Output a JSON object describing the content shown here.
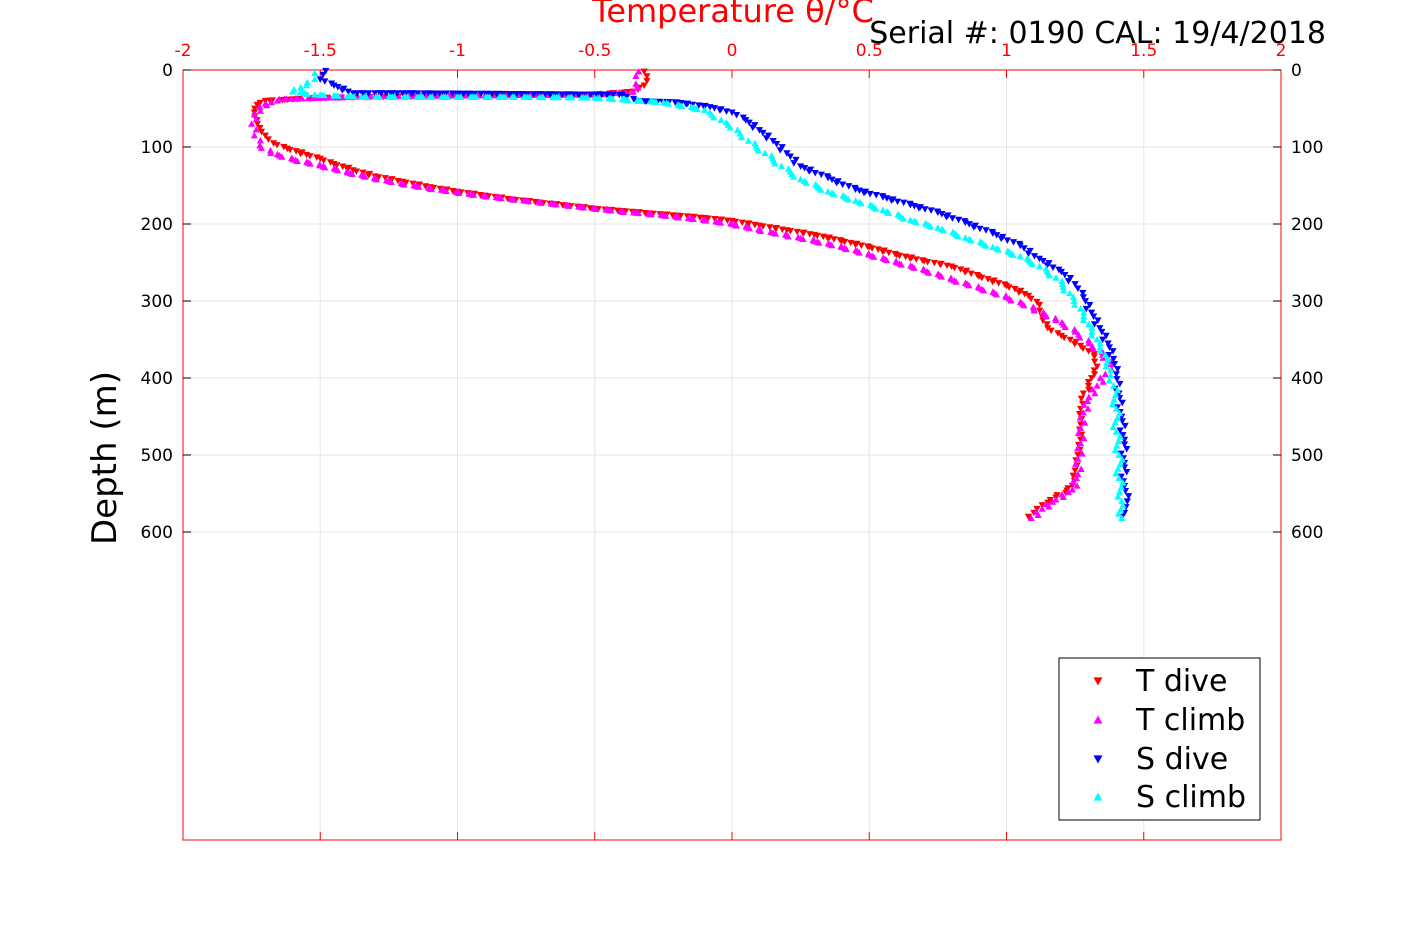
{
  "chart_data": {
    "type": "scatter",
    "title": "Temperature θ/°C",
    "annotation": "Serial #: 0190  CAL: 19/4/2018",
    "xlabel": "Temperature θ/°C",
    "ylabel": "Depth (m)",
    "xlim": [
      -2,
      2
    ],
    "ylim": [
      0,
      1000
    ],
    "y_reversed": true,
    "x_ticks": [
      "-2",
      "-1.5",
      "-1",
      "-0.5",
      "0",
      "0.5",
      "1",
      "1.5",
      "2"
    ],
    "x_tick_values": [
      -2,
      -1.5,
      -1,
      -0.5,
      0,
      0.5,
      1,
      1.5,
      2
    ],
    "y_ticks": [
      "0",
      "100",
      "200",
      "300",
      "400",
      "500",
      "600"
    ],
    "y_tick_values": [
      0,
      100,
      200,
      300,
      400,
      500,
      600
    ],
    "grid": true,
    "legend_position": "bottom-right",
    "colors": {
      "t_dive": "#ff0000",
      "t_climb": "#ff00ff",
      "s_dive": "#0000ff",
      "s_climb": "#00ffff",
      "axis_top": "#ff0000"
    },
    "series": [
      {
        "name": "T dive",
        "marker": "triangle-down",
        "color": "#ff0000",
        "points": [
          [
            -0.32,
            2
          ],
          [
            -0.31,
            8
          ],
          [
            -0.31,
            14
          ],
          [
            -0.32,
            20
          ],
          [
            -0.36,
            28
          ],
          [
            -0.5,
            32
          ],
          [
            -0.8,
            32
          ],
          [
            -1.1,
            34
          ],
          [
            -1.5,
            36
          ],
          [
            -1.6,
            38
          ],
          [
            -1.7,
            40
          ],
          [
            -1.73,
            45
          ],
          [
            -1.74,
            55
          ],
          [
            -1.73,
            65
          ],
          [
            -1.72,
            75
          ],
          [
            -1.7,
            85
          ],
          [
            -1.67,
            95
          ],
          [
            -1.62,
            102
          ],
          [
            -1.55,
            110
          ],
          [
            -1.5,
            115
          ],
          [
            -1.45,
            122
          ],
          [
            -1.38,
            130
          ],
          [
            -1.3,
            138
          ],
          [
            -1.2,
            145
          ],
          [
            -1.1,
            152
          ],
          [
            -1.0,
            158
          ],
          [
            -0.9,
            163
          ],
          [
            -0.8,
            168
          ],
          [
            -0.7,
            172
          ],
          [
            -0.6,
            176
          ],
          [
            -0.5,
            180
          ],
          [
            -0.4,
            183
          ],
          [
            -0.3,
            186
          ],
          [
            -0.2,
            189
          ],
          [
            -0.1,
            192
          ],
          [
            0.0,
            196
          ],
          [
            0.1,
            202
          ],
          [
            0.2,
            208
          ],
          [
            0.3,
            214
          ],
          [
            0.4,
            222
          ],
          [
            0.5,
            230
          ],
          [
            0.6,
            240
          ],
          [
            0.7,
            248
          ],
          [
            0.8,
            255
          ],
          [
            0.9,
            268
          ],
          [
            1.0,
            280
          ],
          [
            1.08,
            293
          ],
          [
            1.12,
            305
          ],
          [
            1.13,
            320
          ],
          [
            1.15,
            335
          ],
          [
            1.2,
            345
          ],
          [
            1.27,
            358
          ],
          [
            1.32,
            372
          ],
          [
            1.33,
            385
          ],
          [
            1.31,
            400
          ],
          [
            1.28,
            420
          ],
          [
            1.27,
            440
          ],
          [
            1.27,
            460
          ],
          [
            1.27,
            480
          ],
          [
            1.26,
            500
          ],
          [
            1.25,
            520
          ],
          [
            1.24,
            540
          ],
          [
            1.18,
            555
          ],
          [
            1.13,
            565
          ],
          [
            1.1,
            575
          ],
          [
            1.08,
            580
          ]
        ]
      },
      {
        "name": "T climb",
        "marker": "triangle-up",
        "color": "#ff00ff",
        "points": [
          [
            1.09,
            582
          ],
          [
            1.13,
            570
          ],
          [
            1.18,
            558
          ],
          [
            1.24,
            545
          ],
          [
            1.26,
            525
          ],
          [
            1.26,
            505
          ],
          [
            1.27,
            485
          ],
          [
            1.27,
            465
          ],
          [
            1.28,
            445
          ],
          [
            1.3,
            425
          ],
          [
            1.33,
            410
          ],
          [
            1.36,
            395
          ],
          [
            1.38,
            382
          ],
          [
            1.35,
            370
          ],
          [
            1.3,
            355
          ],
          [
            1.25,
            340
          ],
          [
            1.18,
            325
          ],
          [
            1.1,
            310
          ],
          [
            1.0,
            295
          ],
          [
            0.9,
            283
          ],
          [
            0.8,
            272
          ],
          [
            0.7,
            260
          ],
          [
            0.6,
            250
          ],
          [
            0.5,
            240
          ],
          [
            0.4,
            230
          ],
          [
            0.3,
            222
          ],
          [
            0.2,
            215
          ],
          [
            0.1,
            208
          ],
          [
            0.0,
            200
          ],
          [
            -0.1,
            195
          ],
          [
            -0.2,
            191
          ],
          [
            -0.3,
            187
          ],
          [
            -0.4,
            184
          ],
          [
            -0.5,
            180
          ],
          [
            -0.6,
            176
          ],
          [
            -0.7,
            172
          ],
          [
            -0.8,
            168
          ],
          [
            -0.9,
            164
          ],
          [
            -1.0,
            159
          ],
          [
            -1.1,
            154
          ],
          [
            -1.2,
            148
          ],
          [
            -1.3,
            141
          ],
          [
            -1.4,
            133
          ],
          [
            -1.5,
            124
          ],
          [
            -1.6,
            116
          ],
          [
            -1.68,
            108
          ],
          [
            -1.72,
            98
          ],
          [
            -1.74,
            85
          ],
          [
            -1.75,
            70
          ],
          [
            -1.74,
            58
          ],
          [
            -1.72,
            48
          ],
          [
            -1.65,
            38
          ],
          [
            -1.3,
            34
          ],
          [
            -0.9,
            33
          ],
          [
            -0.5,
            32
          ],
          [
            -0.36,
            28
          ],
          [
            -0.35,
            18
          ],
          [
            -0.35,
            8
          ],
          [
            -0.34,
            2
          ]
        ]
      },
      {
        "name": "S dive",
        "marker": "triangle-down",
        "color": "#0000ff",
        "points": [
          [
            -1.48,
            1
          ],
          [
            -1.49,
            6
          ],
          [
            -1.5,
            12
          ],
          [
            -1.45,
            20
          ],
          [
            -1.38,
            30
          ],
          [
            -1.2,
            30
          ],
          [
            -0.8,
            31
          ],
          [
            -0.4,
            32
          ],
          [
            -0.35,
            40
          ],
          [
            -0.2,
            42
          ],
          [
            -0.08,
            48
          ],
          [
            0.0,
            55
          ],
          [
            0.05,
            65
          ],
          [
            0.1,
            78
          ],
          [
            0.15,
            92
          ],
          [
            0.2,
            108
          ],
          [
            0.25,
            125
          ],
          [
            0.35,
            140
          ],
          [
            0.45,
            155
          ],
          [
            0.55,
            165
          ],
          [
            0.65,
            175
          ],
          [
            0.75,
            185
          ],
          [
            0.85,
            198
          ],
          [
            0.95,
            212
          ],
          [
            1.05,
            228
          ],
          [
            1.12,
            245
          ],
          [
            1.2,
            262
          ],
          [
            1.25,
            278
          ],
          [
            1.28,
            295
          ],
          [
            1.31,
            315
          ],
          [
            1.34,
            335
          ],
          [
            1.37,
            355
          ],
          [
            1.39,
            375
          ],
          [
            1.4,
            395
          ],
          [
            1.41,
            420
          ],
          [
            1.42,
            450
          ],
          [
            1.43,
            480
          ],
          [
            1.43,
            510
          ],
          [
            1.43,
            540
          ],
          [
            1.44,
            560
          ],
          [
            1.43,
            575
          ],
          [
            1.42,
            580
          ]
        ]
      },
      {
        "name": "S climb",
        "marker": "triangle-up",
        "color": "#00ffff",
        "points": [
          [
            1.42,
            582
          ],
          [
            1.42,
            560
          ],
          [
            1.41,
            530
          ],
          [
            1.41,
            500
          ],
          [
            1.4,
            470
          ],
          [
            1.4,
            440
          ],
          [
            1.39,
            410
          ],
          [
            1.38,
            390
          ],
          [
            1.36,
            370
          ],
          [
            1.33,
            350
          ],
          [
            1.3,
            330
          ],
          [
            1.27,
            310
          ],
          [
            1.23,
            290
          ],
          [
            1.18,
            270
          ],
          [
            1.12,
            255
          ],
          [
            1.05,
            242
          ],
          [
            0.95,
            230
          ],
          [
            0.85,
            218
          ],
          [
            0.75,
            205
          ],
          [
            0.65,
            195
          ],
          [
            0.55,
            182
          ],
          [
            0.45,
            170
          ],
          [
            0.35,
            158
          ],
          [
            0.25,
            142
          ],
          [
            0.18,
            125
          ],
          [
            0.12,
            108
          ],
          [
            0.06,
            92
          ],
          [
            0.02,
            78
          ],
          [
            -0.04,
            65
          ],
          [
            -0.1,
            52
          ],
          [
            -0.25,
            42
          ],
          [
            -0.5,
            36
          ],
          [
            -0.8,
            35
          ],
          [
            -1.1,
            35
          ],
          [
            -1.35,
            35
          ],
          [
            -1.52,
            32
          ],
          [
            -1.6,
            28
          ],
          [
            -1.55,
            20
          ],
          [
            -1.52,
            12
          ],
          [
            -1.52,
            4
          ]
        ]
      }
    ]
  }
}
